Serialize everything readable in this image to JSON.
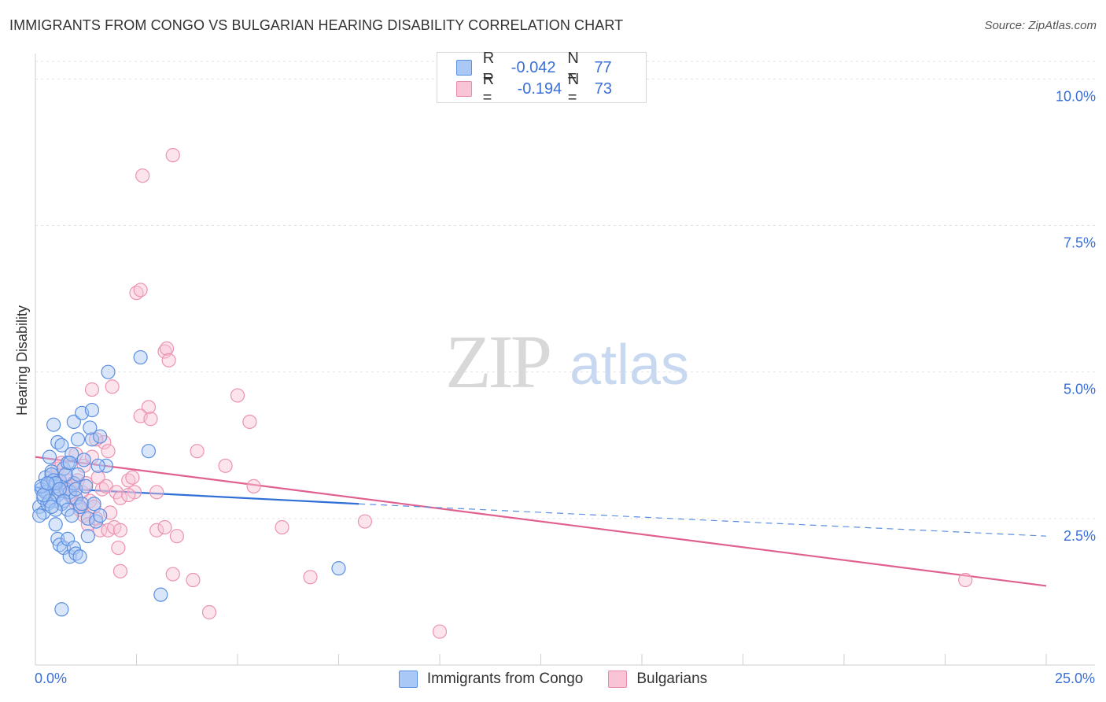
{
  "title": "IMMIGRANTS FROM CONGO VS BULGARIAN HEARING DISABILITY CORRELATION CHART",
  "source": "Source: ZipAtlas.com",
  "watermark": {
    "zip": "ZIP",
    "atlas": "atlas"
  },
  "legend": {
    "r_label": "R =",
    "n_label": "N =",
    "rows": [
      {
        "r": "-0.042",
        "n": "77",
        "fill": "#aac8f5",
        "stroke": "#5b8fe0"
      },
      {
        "r": "-0.194",
        "n": "73",
        "fill": "#f8c4d6",
        "stroke": "#e98aa8"
      }
    ]
  },
  "bottom_legend": [
    {
      "label": "Immigrants from Congo",
      "fill": "#aac8f5",
      "stroke": "#5b8fe0"
    },
    {
      "label": "Bulgarians",
      "fill": "#f8c4d6",
      "stroke": "#e98aa8"
    }
  ],
  "x_axis_labels": {
    "min": "0.0%",
    "max": "25.0%"
  },
  "chart_data": {
    "type": "scatter",
    "ylabel": "Hearing Disability",
    "xlim": [
      0,
      25
    ],
    "ylim": [
      0,
      10.3
    ],
    "y_ticks": [
      {
        "value": 2.5,
        "label": "2.5%"
      },
      {
        "value": 5.0,
        "label": "5.0%"
      },
      {
        "value": 7.5,
        "label": "7.5%"
      },
      {
        "value": 10.0,
        "label": "10.0%"
      }
    ],
    "x_minor_ticks": [
      2.5,
      5.0,
      7.5,
      10.0,
      12.5,
      15.0,
      17.5,
      20.0,
      22.5,
      25.0
    ],
    "series": [
      {
        "name": "Immigrants from Congo",
        "color": "#5b8fe0",
        "fill": "#aac8f5",
        "trend": {
          "x0": 0,
          "y0": 3.03,
          "x1": 8.0,
          "y1": 2.75,
          "dash_to_x": 25,
          "dash_to_y": 2.2
        },
        "points": [
          [
            0.1,
            2.7
          ],
          [
            0.15,
            3.0
          ],
          [
            0.2,
            2.85
          ],
          [
            0.25,
            3.2
          ],
          [
            0.3,
            2.95
          ],
          [
            0.35,
            3.1
          ],
          [
            0.4,
            3.3
          ],
          [
            0.45,
            2.8
          ],
          [
            0.5,
            3.05
          ],
          [
            0.55,
            2.9
          ],
          [
            0.6,
            3.15
          ],
          [
            0.65,
            2.75
          ],
          [
            0.7,
            3.35
          ],
          [
            0.75,
            3.0
          ],
          [
            0.8,
            3.45
          ],
          [
            0.85,
            2.95
          ],
          [
            0.9,
            3.6
          ],
          [
            0.95,
            3.1
          ],
          [
            1.0,
            2.85
          ],
          [
            1.05,
            3.25
          ],
          [
            1.1,
            2.7
          ],
          [
            1.2,
            3.5
          ],
          [
            1.3,
            2.5
          ],
          [
            1.4,
            3.85
          ],
          [
            1.5,
            2.45
          ],
          [
            1.6,
            3.9
          ],
          [
            1.75,
            3.4
          ],
          [
            0.2,
            2.6
          ],
          [
            0.3,
            2.75
          ],
          [
            0.4,
            3.25
          ],
          [
            0.5,
            2.4
          ],
          [
            0.55,
            2.15
          ],
          [
            0.6,
            2.05
          ],
          [
            0.7,
            2.0
          ],
          [
            0.8,
            2.15
          ],
          [
            0.85,
            1.85
          ],
          [
            0.95,
            2.0
          ],
          [
            1.0,
            1.9
          ],
          [
            1.1,
            1.85
          ],
          [
            0.45,
            4.1
          ],
          [
            0.55,
            3.8
          ],
          [
            0.65,
            3.75
          ],
          [
            0.75,
            3.25
          ],
          [
            0.85,
            3.45
          ],
          [
            0.95,
            4.15
          ],
          [
            1.05,
            3.85
          ],
          [
            1.15,
            4.3
          ],
          [
            1.35,
            4.05
          ],
          [
            1.4,
            4.35
          ],
          [
            1.8,
            5.0
          ],
          [
            2.6,
            5.25
          ],
          [
            2.8,
            3.65
          ],
          [
            0.35,
            3.55
          ],
          [
            0.45,
            3.15
          ],
          [
            0.5,
            3.1
          ],
          [
            0.6,
            3.0
          ],
          [
            0.7,
            2.8
          ],
          [
            0.8,
            2.65
          ],
          [
            0.9,
            2.55
          ],
          [
            1.0,
            3.0
          ],
          [
            1.15,
            2.75
          ],
          [
            1.25,
            3.05
          ],
          [
            1.45,
            2.75
          ],
          [
            1.55,
            3.4
          ],
          [
            0.25,
            2.95
          ],
          [
            0.35,
            2.8
          ],
          [
            0.5,
            2.65
          ],
          [
            0.65,
            0.95
          ],
          [
            3.1,
            1.2
          ],
          [
            7.5,
            1.65
          ],
          [
            0.1,
            2.55
          ],
          [
            0.15,
            3.05
          ],
          [
            0.2,
            2.9
          ],
          [
            0.3,
            3.1
          ],
          [
            0.4,
            2.7
          ],
          [
            1.3,
            2.2
          ],
          [
            1.6,
            2.55
          ]
        ]
      },
      {
        "name": "Bulgarians",
        "color": "#e06090",
        "fill": "#f8c4d6",
        "trend": {
          "x0": 0,
          "y0": 3.55,
          "x1": 25,
          "y1": 1.35
        },
        "points": [
          [
            3.4,
            8.7
          ],
          [
            2.65,
            8.35
          ],
          [
            2.5,
            6.35
          ],
          [
            2.6,
            6.4
          ],
          [
            3.2,
            5.35
          ],
          [
            3.25,
            5.4
          ],
          [
            3.3,
            5.2
          ],
          [
            1.4,
            4.7
          ],
          [
            1.9,
            4.75
          ],
          [
            2.8,
            4.4
          ],
          [
            2.6,
            4.25
          ],
          [
            2.85,
            4.2
          ],
          [
            5.0,
            4.6
          ],
          [
            5.3,
            4.15
          ],
          [
            1.7,
            3.8
          ],
          [
            1.8,
            3.65
          ],
          [
            1.5,
            3.85
          ],
          [
            4.0,
            3.65
          ],
          [
            4.7,
            3.4
          ],
          [
            5.4,
            3.05
          ],
          [
            1.0,
            3.6
          ],
          [
            1.2,
            3.4
          ],
          [
            1.4,
            3.55
          ],
          [
            1.55,
            3.2
          ],
          [
            1.65,
            3.0
          ],
          [
            1.75,
            3.05
          ],
          [
            2.0,
            2.95
          ],
          [
            2.1,
            2.85
          ],
          [
            2.3,
            3.15
          ],
          [
            2.4,
            3.2
          ],
          [
            2.45,
            2.95
          ],
          [
            3.0,
            2.95
          ],
          [
            0.3,
            3.05
          ],
          [
            0.5,
            2.95
          ],
          [
            0.6,
            3.1
          ],
          [
            0.7,
            3.0
          ],
          [
            0.8,
            3.15
          ],
          [
            0.9,
            2.85
          ],
          [
            1.0,
            2.75
          ],
          [
            1.1,
            2.65
          ],
          [
            1.2,
            2.55
          ],
          [
            1.3,
            2.4
          ],
          [
            1.5,
            2.5
          ],
          [
            1.6,
            2.3
          ],
          [
            1.8,
            2.3
          ],
          [
            1.95,
            2.35
          ],
          [
            2.1,
            2.3
          ],
          [
            3.0,
            2.3
          ],
          [
            3.2,
            2.35
          ],
          [
            3.5,
            2.2
          ],
          [
            2.05,
            2.0
          ],
          [
            2.1,
            1.6
          ],
          [
            3.4,
            1.55
          ],
          [
            3.9,
            1.45
          ],
          [
            4.3,
            0.9
          ],
          [
            6.1,
            2.35
          ],
          [
            6.8,
            1.5
          ],
          [
            8.15,
            2.45
          ],
          [
            10.0,
            0.57
          ],
          [
            23.0,
            1.45
          ],
          [
            0.4,
            3.2
          ],
          [
            0.55,
            3.35
          ],
          [
            0.65,
            3.45
          ],
          [
            0.75,
            3.25
          ],
          [
            0.85,
            2.9
          ],
          [
            0.95,
            3.05
          ],
          [
            1.05,
            3.15
          ],
          [
            1.15,
            2.95
          ],
          [
            1.25,
            3.1
          ],
          [
            1.35,
            2.8
          ],
          [
            1.45,
            2.7
          ],
          [
            2.3,
            2.9
          ],
          [
            1.85,
            2.6
          ]
        ]
      }
    ]
  }
}
